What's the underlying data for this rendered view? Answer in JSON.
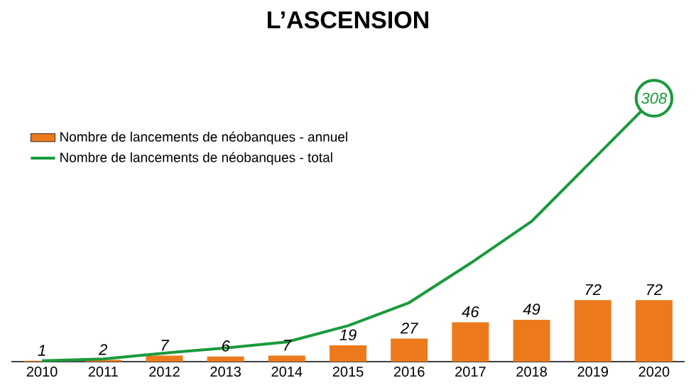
{
  "chart_data": {
    "type": "bar",
    "title": "L’ASCENSION",
    "categories": [
      "2010",
      "2011",
      "2012",
      "2013",
      "2014",
      "2015",
      "2016",
      "2017",
      "2018",
      "2019",
      "2020"
    ],
    "legend": "top left",
    "series": [
      {
        "name": "Nombre de lancements de néobanques - annuel",
        "color": "#ec7a1c",
        "values": [
          1,
          2,
          7,
          6,
          7,
          19,
          27,
          46,
          49,
          72,
          72
        ],
        "value_labels": [
          "1",
          "2",
          "7",
          "6",
          "7",
          "19",
          "27",
          "46",
          "49",
          "72",
          "72"
        ]
      },
      {
        "name": "Nombre de lancements de néobanques - total",
        "type": "line",
        "color": "#1a9a3c",
        "values": [
          1,
          3,
          10,
          16,
          23,
          42,
          69,
          115,
          164,
          236,
          308
        ],
        "value_labels": [
          null,
          null,
          null,
          null,
          null,
          null,
          null,
          null,
          null,
          null,
          "308"
        ]
      }
    ]
  }
}
